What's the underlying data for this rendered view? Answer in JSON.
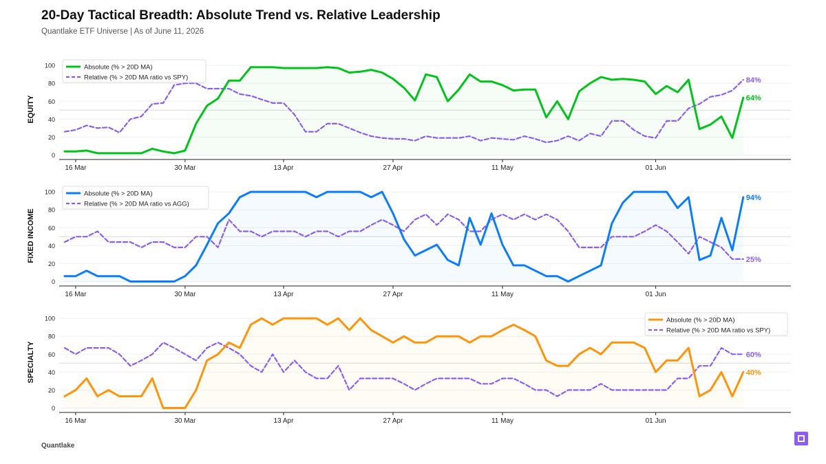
{
  "title": "20-Day Tactical Breadth: Absolute Trend vs. Relative Leadership",
  "subtitle": "Quantlake ETF Universe  |  As of June 11, 2026",
  "footer": "Quantlake",
  "badge_icon": "brand-mark-icon",
  "chart_data": [
    {
      "type": "line",
      "ylabel": "EQUITY",
      "ylim": [
        -5,
        107
      ],
      "yticks": [
        "0",
        "20",
        "40",
        "60",
        "80",
        "100"
      ],
      "xticks": [
        {
          "index": 1,
          "label": "16 Mar"
        },
        {
          "index": 11,
          "label": "30 Mar"
        },
        {
          "index": 20,
          "label": "13 Apr"
        },
        {
          "index": 30,
          "label": "27 Apr"
        },
        {
          "index": 40,
          "label": "11 May"
        },
        {
          "index": 54,
          "label": "01 Jun"
        }
      ],
      "grid": true,
      "reference_line": 50,
      "legend_position": "top-left",
      "series": [
        {
          "name": "Absolute (% > 20D MA)",
          "color": "#00c41a",
          "style": "solid",
          "end_label": "64%",
          "values": [
            4,
            4,
            5,
            2,
            2,
            2,
            2,
            2,
            7,
            4,
            2,
            5,
            35,
            55,
            63,
            83,
            83,
            98,
            98,
            98,
            97,
            97,
            97,
            97,
            98,
            97,
            92,
            93,
            95,
            92,
            85,
            75,
            61,
            90,
            87,
            60,
            73,
            90,
            82,
            82,
            78,
            72,
            73,
            73,
            42,
            60,
            40,
            71,
            80,
            87,
            84,
            85,
            84,
            82,
            68,
            77,
            70,
            84,
            29,
            34,
            43,
            19,
            64
          ]
        },
        {
          "name": "Relative (% > 20D MA ratio vs SPY)",
          "color": "#8b5cf6",
          "style": "dashed",
          "end_label": "84%",
          "values": [
            26,
            28,
            33,
            30,
            31,
            25,
            40,
            43,
            57,
            58,
            78,
            80,
            80,
            74,
            74,
            74,
            68,
            66,
            62,
            58,
            58,
            45,
            26,
            26,
            35,
            35,
            30,
            25,
            21,
            19,
            18,
            18,
            16,
            21,
            19,
            19,
            19,
            21,
            16,
            19,
            18,
            17,
            21,
            18,
            14,
            16,
            21,
            16,
            24,
            21,
            38,
            38,
            28,
            21,
            19,
            38,
            38,
            52,
            57,
            65,
            67,
            72,
            84
          ]
        }
      ]
    },
    {
      "type": "line",
      "ylabel": "FIXED INCOME",
      "ylim": [
        -5,
        107
      ],
      "yticks": [
        "0",
        "20",
        "40",
        "60",
        "80",
        "100"
      ],
      "xticks": [
        {
          "index": 1,
          "label": "16 Mar"
        },
        {
          "index": 11,
          "label": "30 Mar"
        },
        {
          "index": 20,
          "label": "13 Apr"
        },
        {
          "index": 30,
          "label": "27 Apr"
        },
        {
          "index": 40,
          "label": "11 May"
        },
        {
          "index": 54,
          "label": "01 Jun"
        }
      ],
      "grid": true,
      "reference_line": 50,
      "legend_position": "top-left",
      "series": [
        {
          "name": "Absolute (% > 20D MA)",
          "color": "#0a7cff",
          "style": "solid",
          "end_label": "94%",
          "values": [
            6,
            6,
            12,
            6,
            6,
            6,
            0,
            0,
            0,
            0,
            0,
            6,
            18,
            41,
            65,
            76,
            94,
            100,
            100,
            100,
            100,
            100,
            100,
            94,
            100,
            100,
            100,
            100,
            94,
            100,
            76,
            47,
            29,
            35,
            41,
            24,
            18,
            71,
            41,
            76,
            41,
            18,
            18,
            12,
            6,
            6,
            0,
            6,
            12,
            18,
            65,
            88,
            100,
            100,
            100,
            100,
            82,
            94,
            24,
            29,
            71,
            35,
            94
          ]
        },
        {
          "name": "Relative (% > 20D MA ratio vs AGG)",
          "color": "#8b5cf6",
          "style": "dashed",
          "end_label": "25%",
          "values": [
            44,
            50,
            50,
            56,
            44,
            44,
            44,
            38,
            44,
            44,
            38,
            38,
            50,
            50,
            38,
            69,
            56,
            56,
            50,
            56,
            56,
            56,
            50,
            56,
            56,
            50,
            56,
            56,
            63,
            69,
            63,
            56,
            69,
            75,
            63,
            75,
            69,
            56,
            56,
            69,
            75,
            69,
            75,
            69,
            75,
            69,
            56,
            38,
            38,
            38,
            50,
            50,
            50,
            56,
            63,
            56,
            44,
            31,
            50,
            44,
            38,
            25,
            25
          ]
        }
      ]
    },
    {
      "type": "line",
      "ylabel": "SPECIALTY",
      "ylim": [
        -5,
        107
      ],
      "yticks": [
        "0",
        "20",
        "40",
        "60",
        "80",
        "100"
      ],
      "xticks": [
        {
          "index": 1,
          "label": "16 Mar"
        },
        {
          "index": 11,
          "label": "30 Mar"
        },
        {
          "index": 20,
          "label": "13 Apr"
        },
        {
          "index": 30,
          "label": "27 Apr"
        },
        {
          "index": 40,
          "label": "11 May"
        },
        {
          "index": 54,
          "label": "01 Jun"
        }
      ],
      "grid": true,
      "reference_line": 50,
      "legend_position": "top-right",
      "series": [
        {
          "name": "Absolute (% > 20D MA)",
          "color": "#ff9408",
          "style": "solid",
          "end_label": "40%",
          "values": [
            13,
            20,
            33,
            13,
            20,
            13,
            13,
            13,
            33,
            0,
            0,
            0,
            20,
            53,
            60,
            73,
            67,
            93,
            100,
            93,
            100,
            100,
            100,
            100,
            93,
            100,
            87,
            100,
            87,
            80,
            73,
            80,
            73,
            73,
            80,
            80,
            80,
            73,
            80,
            80,
            87,
            93,
            87,
            80,
            53,
            47,
            47,
            60,
            67,
            60,
            73,
            73,
            73,
            67,
            40,
            53,
            53,
            67,
            13,
            20,
            40,
            13,
            40
          ]
        },
        {
          "name": "Relative (% > 20D MA ratio vs SPY)",
          "color": "#8b5cf6",
          "style": "dashed",
          "end_label": "60%",
          "values": [
            67,
            60,
            67,
            67,
            67,
            60,
            47,
            53,
            60,
            73,
            67,
            60,
            53,
            67,
            73,
            67,
            60,
            47,
            40,
            60,
            40,
            53,
            40,
            33,
            33,
            47,
            20,
            33,
            33,
            33,
            33,
            27,
            20,
            27,
            33,
            33,
            33,
            33,
            27,
            27,
            33,
            33,
            27,
            20,
            20,
            13,
            20,
            20,
            20,
            27,
            20,
            20,
            20,
            20,
            20,
            20,
            33,
            33,
            47,
            47,
            67,
            60,
            60
          ]
        }
      ]
    }
  ]
}
